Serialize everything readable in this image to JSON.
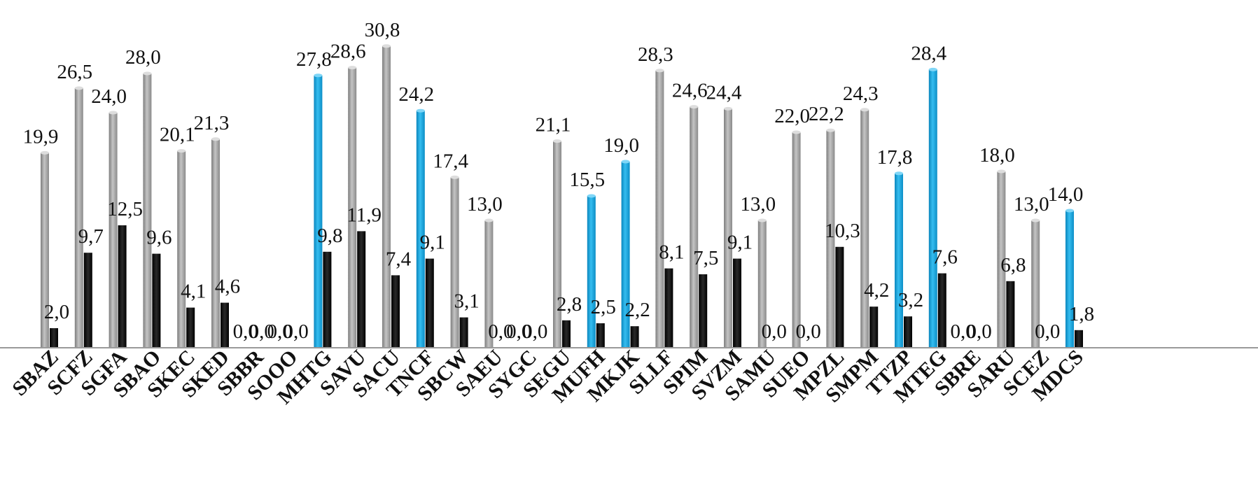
{
  "chart_data": {
    "type": "bar",
    "categories": [
      "SBAZ",
      "SCFZ",
      "SGFA",
      "SBAO",
      "SKEC",
      "SKED",
      "SBBR",
      "SOOO",
      "MHTG",
      "SAVU",
      "SACU",
      "TNCF",
      "SBCW",
      "SAEU",
      "SYGC",
      "SEGU",
      "MUFH",
      "MKJK",
      "SLLF",
      "SPIM",
      "SVZM",
      "SAMU",
      "SUEO",
      "MPZL",
      "SMPM",
      "TTZP",
      "MTEG",
      "SBRE",
      "SARU",
      "SCEZ",
      "MDCS"
    ],
    "series": [
      {
        "values": [
          19.9,
          26.5,
          24.0,
          28.0,
          20.1,
          21.3,
          0.0,
          0.0,
          27.8,
          28.6,
          30.8,
          24.2,
          17.4,
          13.0,
          0.0,
          21.1,
          15.5,
          19.0,
          28.3,
          24.6,
          24.4,
          13.0,
          22.0,
          22.2,
          24.3,
          17.8,
          28.4,
          0.0,
          18.0,
          13.0,
          14.0
        ],
        "labels": [
          "19,9",
          "26,5",
          "24,0",
          "28,0",
          "20,1",
          "21,3",
          "0,0",
          "0,0",
          "27,8",
          "28,6",
          "30,8",
          "24,2",
          "17,4",
          "13,0",
          "0,0",
          "21,1",
          "15,5",
          "19,0",
          "28,3",
          "24,6",
          "24,4",
          "13,0",
          "22,0",
          "22,2",
          "24,3",
          "17,8",
          "28,4",
          "0,0",
          "18,0",
          "13,0",
          "14,0"
        ],
        "colors": [
          "#a8a8a8",
          "#a8a8a8",
          "#a8a8a8",
          "#a8a8a8",
          "#a8a8a8",
          "#a8a8a8",
          "#a8a8a8",
          "#a8a8a8",
          "#1aa3dc",
          "#a8a8a8",
          "#a8a8a8",
          "#1aa3dc",
          "#a8a8a8",
          "#a8a8a8",
          "#a8a8a8",
          "#a8a8a8",
          "#1aa3dc",
          "#1aa3dc",
          "#a8a8a8",
          "#a8a8a8",
          "#a8a8a8",
          "#a8a8a8",
          "#a8a8a8",
          "#a8a8a8",
          "#a8a8a8",
          "#1aa3dc",
          "#1aa3dc",
          "#a8a8a8",
          "#a8a8a8",
          "#a8a8a8",
          "#1aa3dc"
        ]
      },
      {
        "values": [
          2.0,
          9.7,
          12.5,
          9.6,
          4.1,
          4.6,
          0.0,
          0.0,
          9.8,
          11.9,
          7.4,
          9.1,
          3.1,
          0.0,
          0.0,
          2.8,
          2.5,
          2.2,
          8.1,
          7.5,
          9.1,
          0.0,
          0.0,
          10.3,
          4.2,
          3.2,
          7.6,
          0.0,
          6.8,
          0.0,
          1.8
        ],
        "labels": [
          "2,0",
          "9,7",
          "12,5",
          "9,6",
          "4,1",
          "4,6",
          "0,0",
          "0,0",
          "9,8",
          "11,9",
          "7,4",
          "9,1",
          "3,1",
          "0,0",
          "0,0",
          "2,8",
          "2,5",
          "2,2",
          "8,1",
          "7,5",
          "9,1",
          "0,0",
          "0,0",
          "10,3",
          "4,2",
          "3,2",
          "7,6",
          "0,0",
          "6,8",
          "0,0",
          "1,8"
        ],
        "color": "#0a0a0a"
      }
    ],
    "ylim": [
      0,
      31.5
    ],
    "grid": false,
    "legend": "none",
    "title": "",
    "xlabel": "",
    "ylabel": ""
  }
}
